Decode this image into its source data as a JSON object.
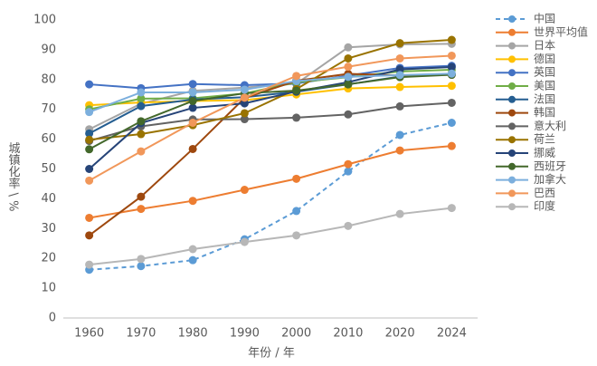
{
  "chart_data": {
    "type": "line",
    "categories": [
      "1960",
      "1970",
      "1980",
      "1990",
      "2000",
      "2010",
      "2020",
      "2024"
    ],
    "x_label": "年份 / 年",
    "y_label": "城镇化率 \\ %",
    "ylim": [
      0,
      100
    ],
    "yticks": [
      0,
      10,
      20,
      30,
      40,
      50,
      60,
      70,
      80,
      90,
      100
    ],
    "grid": false,
    "legend": "right",
    "series": [
      {
        "name": "中国",
        "color": "#5b9bd5",
        "dashed": true,
        "values": [
          16.2,
          17.4,
          19.4,
          26.4,
          35.9,
          49.2,
          61.4,
          65.5
        ]
      },
      {
        "name": "世界平均值",
        "color": "#ed7d31",
        "values": [
          33.6,
          36.6,
          39.3,
          43.0,
          46.7,
          51.6,
          56.2,
          57.7
        ]
      },
      {
        "name": "日本",
        "color": "#a5a5a5",
        "values": [
          63.3,
          71.9,
          76.2,
          77.3,
          78.6,
          90.8,
          91.8,
          92.0
        ]
      },
      {
        "name": "德国",
        "color": "#ffc000",
        "values": [
          71.4,
          72.3,
          72.8,
          73.1,
          75.0,
          77.0,
          77.5,
          77.9
        ]
      },
      {
        "name": "英国",
        "color": "#4472c4",
        "values": [
          78.4,
          77.1,
          78.5,
          78.1,
          78.7,
          81.3,
          83.9,
          84.6
        ]
      },
      {
        "name": "美国",
        "color": "#70ad47",
        "values": [
          70.0,
          73.6,
          73.7,
          75.3,
          79.1,
          80.8,
          82.7,
          83.3
        ]
      },
      {
        "name": "法国",
        "color": "#255e91",
        "values": [
          61.9,
          71.1,
          73.3,
          74.1,
          75.9,
          78.4,
          81.0,
          81.8
        ]
      },
      {
        "name": "韩国",
        "color": "#9e480e",
        "values": [
          27.7,
          40.7,
          56.7,
          73.8,
          79.6,
          81.9,
          81.4,
          81.6
        ]
      },
      {
        "name": "意大利",
        "color": "#636363",
        "values": [
          59.4,
          64.3,
          66.6,
          66.7,
          67.2,
          68.3,
          71.0,
          72.2
        ]
      },
      {
        "name": "荷兰",
        "color": "#997300",
        "values": [
          59.8,
          61.7,
          64.7,
          68.7,
          76.8,
          87.1,
          92.2,
          93.3
        ]
      },
      {
        "name": "挪威",
        "color": "#264478",
        "values": [
          50.0,
          65.4,
          70.5,
          72.0,
          76.0,
          79.1,
          83.4,
          84.2
        ]
      },
      {
        "name": "西班牙",
        "color": "#43682b",
        "values": [
          56.6,
          66.0,
          72.8,
          75.4,
          76.3,
          78.4,
          80.8,
          81.6
        ]
      },
      {
        "name": "加拿大",
        "color": "#7cafdd",
        "values": [
          69.1,
          75.7,
          75.7,
          76.6,
          79.5,
          80.9,
          81.5,
          82.0
        ]
      },
      {
        "name": "巴西",
        "color": "#f1975a",
        "values": [
          46.1,
          55.9,
          65.5,
          73.9,
          81.2,
          84.3,
          87.1,
          88.0
        ]
      },
      {
        "name": "印度",
        "color": "#b7b7b7",
        "values": [
          17.9,
          19.8,
          23.1,
          25.5,
          27.7,
          30.9,
          34.9,
          36.9
        ]
      }
    ]
  }
}
